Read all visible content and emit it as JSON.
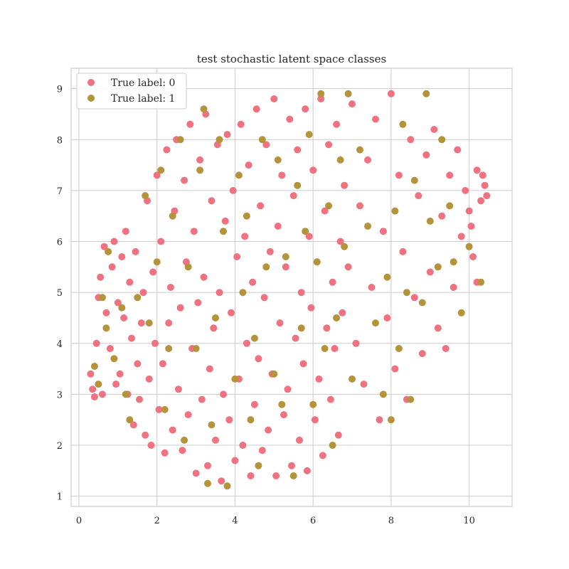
{
  "chart_data": {
    "type": "scatter",
    "title": "test stochastic latent space classes",
    "xlabel": "",
    "ylabel": "",
    "xlim": [
      -0.2,
      11.1
    ],
    "ylim": [
      0.8,
      9.4
    ],
    "xticks": [
      0,
      2,
      4,
      6,
      8,
      10
    ],
    "yticks": [
      1,
      2,
      3,
      4,
      5,
      6,
      7,
      8,
      9
    ],
    "grid": true,
    "legend": {
      "position": "top-left"
    },
    "series": [
      {
        "name": "True label: 0",
        "color": "#f0717f",
        "points": [
          [
            0.3,
            3.4
          ],
          [
            0.35,
            3.1
          ],
          [
            0.4,
            2.95
          ],
          [
            0.45,
            4.0
          ],
          [
            0.5,
            4.9
          ],
          [
            0.55,
            5.3
          ],
          [
            0.6,
            3.0
          ],
          [
            0.65,
            5.9
          ],
          [
            0.7,
            4.6
          ],
          [
            0.8,
            3.9
          ],
          [
            0.85,
            5.5
          ],
          [
            0.9,
            6.0
          ],
          [
            0.95,
            3.2
          ],
          [
            1.0,
            4.8
          ],
          [
            1.05,
            3.4
          ],
          [
            1.1,
            5.7
          ],
          [
            1.15,
            4.5
          ],
          [
            1.2,
            6.2
          ],
          [
            1.25,
            3.0
          ],
          [
            1.3,
            5.2
          ],
          [
            1.35,
            4.1
          ],
          [
            1.4,
            2.4
          ],
          [
            1.45,
            5.8
          ],
          [
            1.5,
            3.6
          ],
          [
            1.55,
            2.9
          ],
          [
            1.6,
            4.4
          ],
          [
            1.65,
            5.0
          ],
          [
            1.7,
            2.2
          ],
          [
            1.75,
            6.8
          ],
          [
            1.8,
            3.3
          ],
          [
            1.85,
            2.0
          ],
          [
            1.9,
            5.4
          ],
          [
            1.95,
            4.0
          ],
          [
            2.0,
            7.3
          ],
          [
            2.05,
            2.7
          ],
          [
            2.1,
            6.0
          ],
          [
            2.15,
            3.6
          ],
          [
            2.2,
            1.85
          ],
          [
            2.25,
            7.8
          ],
          [
            2.3,
            4.4
          ],
          [
            2.35,
            5.1
          ],
          [
            2.4,
            2.3
          ],
          [
            2.45,
            6.6
          ],
          [
            2.5,
            8.0
          ],
          [
            2.55,
            3.1
          ],
          [
            2.6,
            4.7
          ],
          [
            2.65,
            1.9
          ],
          [
            2.7,
            7.2
          ],
          [
            2.75,
            5.6
          ],
          [
            2.8,
            2.6
          ],
          [
            2.85,
            8.3
          ],
          [
            2.9,
            3.9
          ],
          [
            2.95,
            6.2
          ],
          [
            3.0,
            1.45
          ],
          [
            3.05,
            4.8
          ],
          [
            3.1,
            7.6
          ],
          [
            3.15,
            2.9
          ],
          [
            3.2,
            5.3
          ],
          [
            3.25,
            8.5
          ],
          [
            3.3,
            1.6
          ],
          [
            3.35,
            3.5
          ],
          [
            3.4,
            6.8
          ],
          [
            3.45,
            4.3
          ],
          [
            3.5,
            2.1
          ],
          [
            3.55,
            7.9
          ],
          [
            3.6,
            5.0
          ],
          [
            3.65,
            1.3
          ],
          [
            3.7,
            3.0
          ],
          [
            3.75,
            6.4
          ],
          [
            3.8,
            8.1
          ],
          [
            3.85,
            2.5
          ],
          [
            3.9,
            4.6
          ],
          [
            3.95,
            7.0
          ],
          [
            4.0,
            1.7
          ],
          [
            4.05,
            5.7
          ],
          [
            4.1,
            3.3
          ],
          [
            4.15,
            8.3
          ],
          [
            4.2,
            2.0
          ],
          [
            4.25,
            6.1
          ],
          [
            4.3,
            4.0
          ],
          [
            4.35,
            7.5
          ],
          [
            4.4,
            1.4
          ],
          [
            4.45,
            5.2
          ],
          [
            4.5,
            2.8
          ],
          [
            4.55,
            8.6
          ],
          [
            4.6,
            3.7
          ],
          [
            4.65,
            6.7
          ],
          [
            4.7,
            1.9
          ],
          [
            4.75,
            4.9
          ],
          [
            4.8,
            7.9
          ],
          [
            4.85,
            2.3
          ],
          [
            4.9,
            5.8
          ],
          [
            4.95,
            3.4
          ],
          [
            5.0,
            8.8
          ],
          [
            5.05,
            1.4
          ],
          [
            5.1,
            6.3
          ],
          [
            5.15,
            4.4
          ],
          [
            5.2,
            7.3
          ],
          [
            5.25,
            2.6
          ],
          [
            5.3,
            5.5
          ],
          [
            5.35,
            3.1
          ],
          [
            5.4,
            8.4
          ],
          [
            5.45,
            1.6
          ],
          [
            5.5,
            6.9
          ],
          [
            5.55,
            4.1
          ],
          [
            5.6,
            7.8
          ],
          [
            5.65,
            2.1
          ],
          [
            5.7,
            5.0
          ],
          [
            5.75,
            3.6
          ],
          [
            5.8,
            8.6
          ],
          [
            5.85,
            1.5
          ],
          [
            5.9,
            6.1
          ],
          [
            5.95,
            4.7
          ],
          [
            6.0,
            7.4
          ],
          [
            6.05,
            2.5
          ],
          [
            6.1,
            5.6
          ],
          [
            6.15,
            3.3
          ],
          [
            6.2,
            8.8
          ],
          [
            6.25,
            1.8
          ],
          [
            6.3,
            6.6
          ],
          [
            6.35,
            4.3
          ],
          [
            6.4,
            7.9
          ],
          [
            6.45,
            2.9
          ],
          [
            6.5,
            5.2
          ],
          [
            6.55,
            3.9
          ],
          [
            6.6,
            8.3
          ],
          [
            6.65,
            2.2
          ],
          [
            6.7,
            6.0
          ],
          [
            6.75,
            4.6
          ],
          [
            6.8,
            7.1
          ],
          [
            6.9,
            5.5
          ],
          [
            7.0,
            8.7
          ],
          [
            7.1,
            4.0
          ],
          [
            7.2,
            6.7
          ],
          [
            7.3,
            3.2
          ],
          [
            7.4,
            7.6
          ],
          [
            7.5,
            5.1
          ],
          [
            7.6,
            8.4
          ],
          [
            7.7,
            2.5
          ],
          [
            7.8,
            6.2
          ],
          [
            7.9,
            4.5
          ],
          [
            8.0,
            8.9
          ],
          [
            8.1,
            3.5
          ],
          [
            8.2,
            7.3
          ],
          [
            8.3,
            5.8
          ],
          [
            8.4,
            2.9
          ],
          [
            8.5,
            8.0
          ],
          [
            8.6,
            4.9
          ],
          [
            8.7,
            6.9
          ],
          [
            8.8,
            3.8
          ],
          [
            8.9,
            7.7
          ],
          [
            9.0,
            5.4
          ],
          [
            9.1,
            8.2
          ],
          [
            9.2,
            4.3
          ],
          [
            9.3,
            6.5
          ],
          [
            9.4,
            3.9
          ],
          [
            9.5,
            7.3
          ],
          [
            9.6,
            5.1
          ],
          [
            9.7,
            7.8
          ],
          [
            9.8,
            6.1
          ],
          [
            9.9,
            7.0
          ],
          [
            10.0,
            6.6
          ],
          [
            10.1,
            5.7
          ],
          [
            10.2,
            7.4
          ],
          [
            10.3,
            6.8
          ],
          [
            10.4,
            7.1
          ],
          [
            10.45,
            6.9
          ],
          [
            10.35,
            7.3
          ],
          [
            10.2,
            5.2
          ],
          [
            10.05,
            6.3
          ]
        ]
      },
      {
        "name": "True label: 1",
        "color": "#b5933a",
        "points": [
          [
            0.4,
            3.55
          ],
          [
            0.5,
            3.2
          ],
          [
            0.6,
            4.9
          ],
          [
            0.7,
            4.3
          ],
          [
            0.75,
            5.8
          ],
          [
            0.9,
            3.7
          ],
          [
            1.1,
            4.7
          ],
          [
            1.2,
            3.0
          ],
          [
            1.3,
            2.5
          ],
          [
            1.5,
            4.9
          ],
          [
            1.7,
            6.9
          ],
          [
            1.8,
            4.4
          ],
          [
            2.0,
            5.6
          ],
          [
            2.1,
            7.4
          ],
          [
            2.2,
            2.7
          ],
          [
            2.3,
            3.9
          ],
          [
            2.4,
            6.5
          ],
          [
            2.6,
            8.0
          ],
          [
            2.7,
            2.1
          ],
          [
            2.8,
            5.5
          ],
          [
            3.0,
            3.9
          ],
          [
            3.1,
            7.4
          ],
          [
            3.2,
            8.6
          ],
          [
            3.3,
            1.25
          ],
          [
            3.4,
            2.4
          ],
          [
            3.5,
            4.5
          ],
          [
            3.6,
            8.0
          ],
          [
            3.7,
            6.2
          ],
          [
            3.8,
            1.2
          ],
          [
            4.0,
            3.3
          ],
          [
            4.1,
            7.3
          ],
          [
            4.2,
            5.0
          ],
          [
            4.3,
            6.5
          ],
          [
            4.4,
            2.5
          ],
          [
            4.5,
            4.1
          ],
          [
            4.6,
            1.6
          ],
          [
            4.7,
            8.0
          ],
          [
            4.8,
            5.5
          ],
          [
            5.0,
            3.4
          ],
          [
            5.1,
            7.6
          ],
          [
            5.2,
            2.8
          ],
          [
            5.3,
            5.7
          ],
          [
            5.5,
            1.4
          ],
          [
            5.6,
            7.1
          ],
          [
            5.7,
            4.3
          ],
          [
            5.8,
            6.2
          ],
          [
            5.9,
            8.1
          ],
          [
            6.0,
            2.8
          ],
          [
            6.1,
            5.6
          ],
          [
            6.2,
            8.9
          ],
          [
            6.3,
            3.9
          ],
          [
            6.4,
            6.7
          ],
          [
            6.5,
            2.0
          ],
          [
            6.6,
            4.5
          ],
          [
            6.7,
            7.6
          ],
          [
            6.8,
            5.9
          ],
          [
            6.9,
            8.9
          ],
          [
            7.0,
            3.3
          ],
          [
            7.2,
            7.8
          ],
          [
            7.4,
            6.3
          ],
          [
            7.6,
            4.4
          ],
          [
            7.8,
            3.0
          ],
          [
            7.9,
            5.3
          ],
          [
            8.0,
            2.5
          ],
          [
            8.1,
            6.6
          ],
          [
            8.2,
            3.9
          ],
          [
            8.3,
            8.3
          ],
          [
            8.4,
            5.0
          ],
          [
            8.5,
            2.9
          ],
          [
            8.6,
            7.2
          ],
          [
            8.8,
            4.8
          ],
          [
            8.9,
            8.9
          ],
          [
            9.0,
            6.4
          ],
          [
            9.2,
            5.5
          ],
          [
            9.3,
            8.0
          ],
          [
            9.5,
            6.7
          ],
          [
            9.6,
            5.6
          ],
          [
            9.8,
            4.6
          ],
          [
            10.0,
            5.9
          ],
          [
            10.3,
            5.2
          ]
        ]
      }
    ]
  }
}
